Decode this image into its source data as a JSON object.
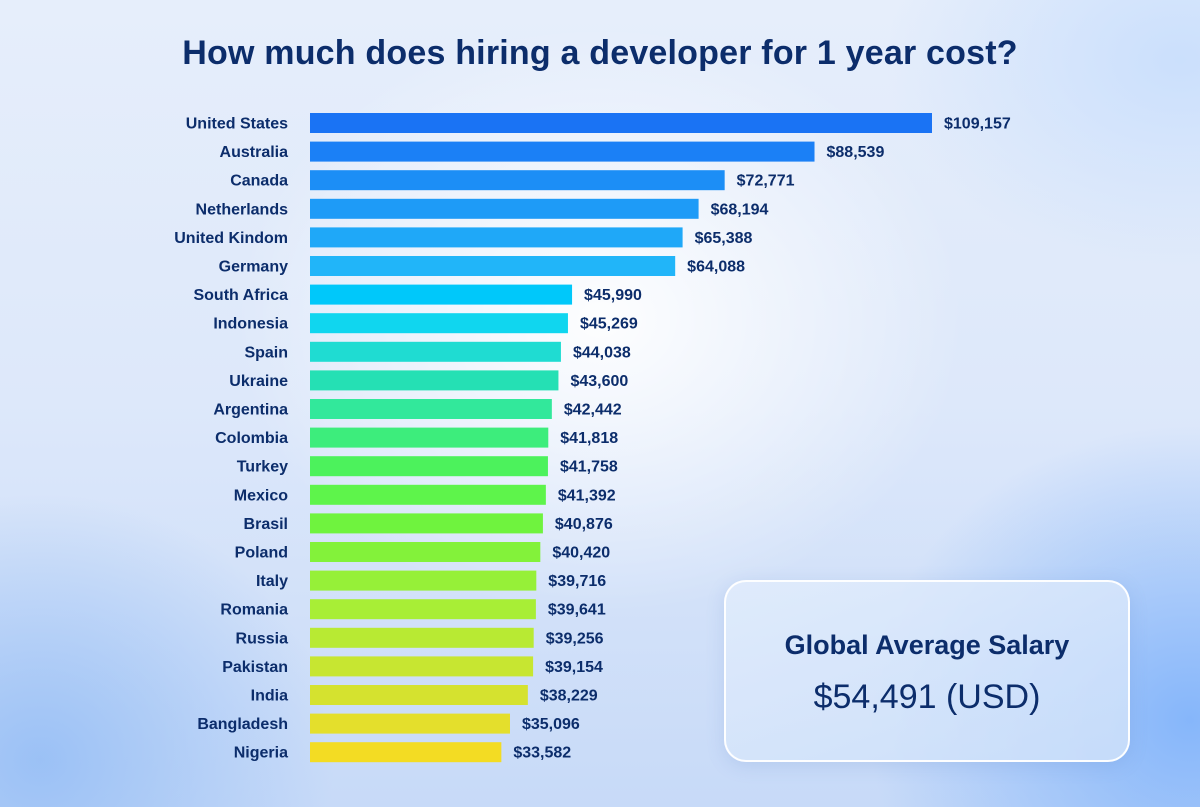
{
  "title": "How much does hiring a developer for 1 year cost?",
  "summary": {
    "label": "Global Average Salary",
    "value": "$54,491 (USD)"
  },
  "chart_data": {
    "type": "bar",
    "orientation": "horizontal",
    "title": "How much does hiring a developer for 1 year cost?",
    "xlabel": "",
    "ylabel": "",
    "grid": false,
    "categories": [
      "United States",
      "Australia",
      "Canada",
      "Netherlands",
      "United Kindom",
      "Germany",
      "South Africa",
      "Indonesia",
      "Spain",
      "Ukraine",
      "Argentina",
      "Colombia",
      "Turkey",
      "Mexico",
      "Brasil",
      "Poland",
      "Italy",
      "Romania",
      "Russia",
      "Pakistan",
      "India",
      "Bangladesh",
      "Nigeria"
    ],
    "values": [
      109157,
      88539,
      72771,
      68194,
      65388,
      64088,
      45990,
      45269,
      44038,
      43600,
      42442,
      41818,
      41758,
      41392,
      40876,
      40420,
      39716,
      39641,
      39256,
      39154,
      38229,
      35096,
      33582
    ],
    "value_labels": [
      "$109,157",
      "$88,539",
      "$72,771",
      "$68,194",
      "$65,388",
      "$64,088",
      "$45,990",
      "$45,269",
      "$44,038",
      "$43,600",
      "$42,442",
      "$41,818",
      "$41,758",
      "$41,392",
      "$40,876",
      "$40,420",
      "$39,716",
      "$39,641",
      "$39,256",
      "$39,154",
      "$38,229",
      "$35,096",
      "$33,582"
    ],
    "colors": [
      "#1a73f4",
      "#1b80f6",
      "#1c8ef6",
      "#1e9bf7",
      "#1fa8f8",
      "#21b5f9",
      "#00c8fa",
      "#10d6ef",
      "#1fdcd2",
      "#25e0b4",
      "#32e89b",
      "#3ded7c",
      "#4cf25c",
      "#5ef44b",
      "#6ff33e",
      "#83f23a",
      "#96f038",
      "#a8ee36",
      "#b8ea33",
      "#c7e631",
      "#d5e22f",
      "#e4df2c",
      "#f3dc23"
    ]
  }
}
